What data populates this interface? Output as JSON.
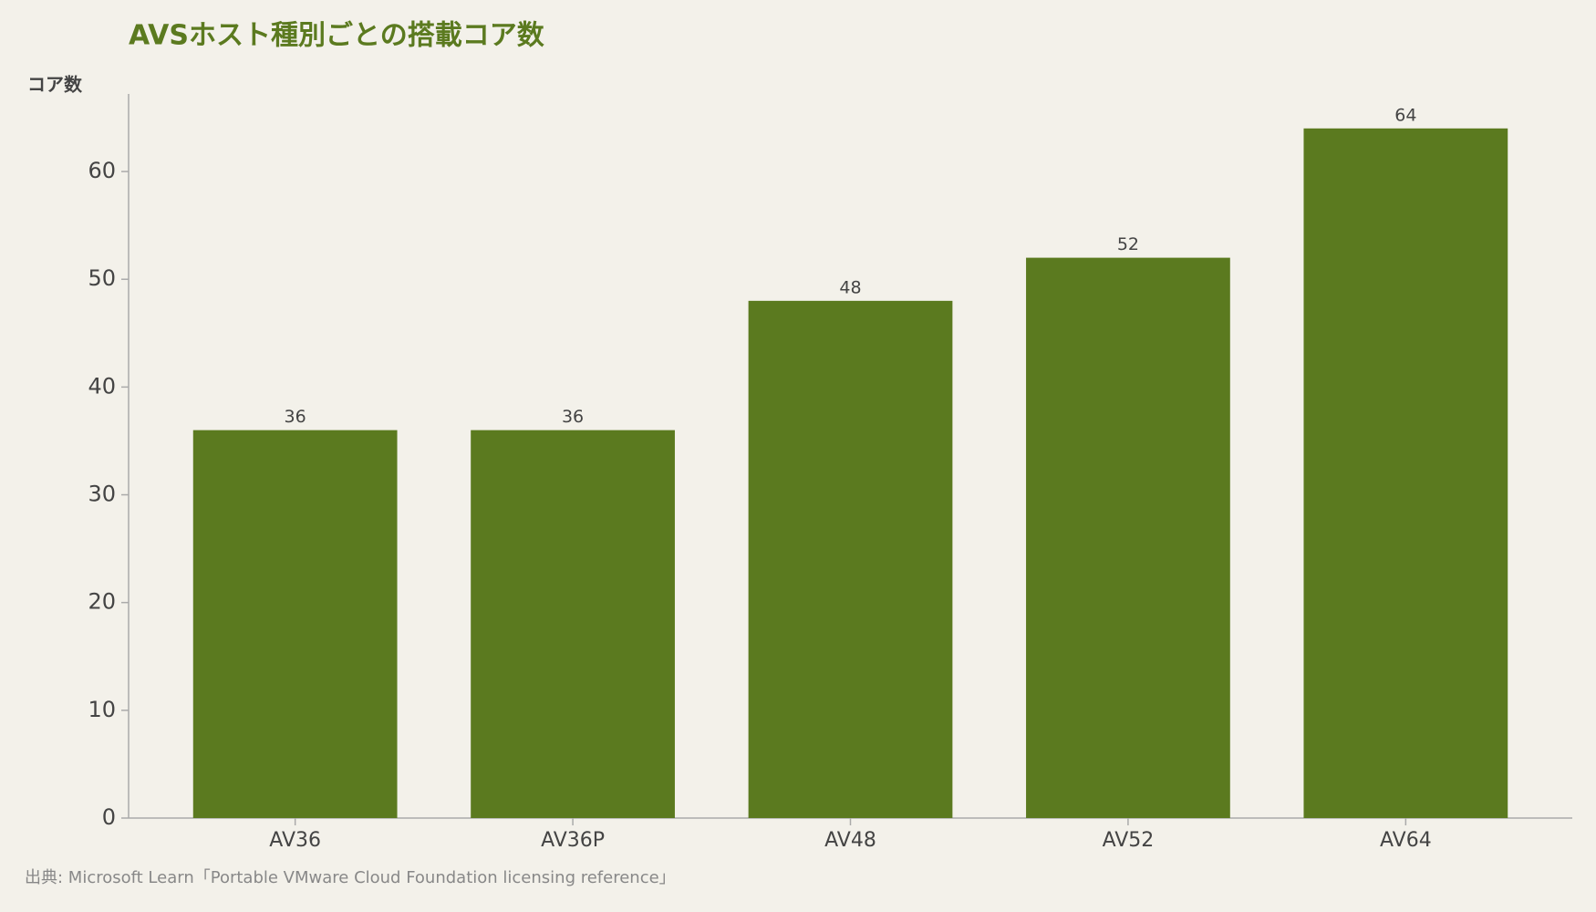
{
  "chart_data": {
    "type": "bar",
    "title": "AVSホスト種別ごとの搭載コア数",
    "y_label": "コア数",
    "source": "出典: Microsoft Learn「Portable VMware Cloud Foundation licensing reference」",
    "categories": [
      "AV36",
      "AV36P",
      "AV48",
      "AV52",
      "AV64"
    ],
    "values": [
      36,
      36,
      48,
      52,
      64
    ],
    "color": "#5b7a1f",
    "ylim": [
      0,
      67.2
    ],
    "yticks": [
      0,
      10,
      20,
      30,
      40,
      50,
      60
    ],
    "grid": false
  }
}
